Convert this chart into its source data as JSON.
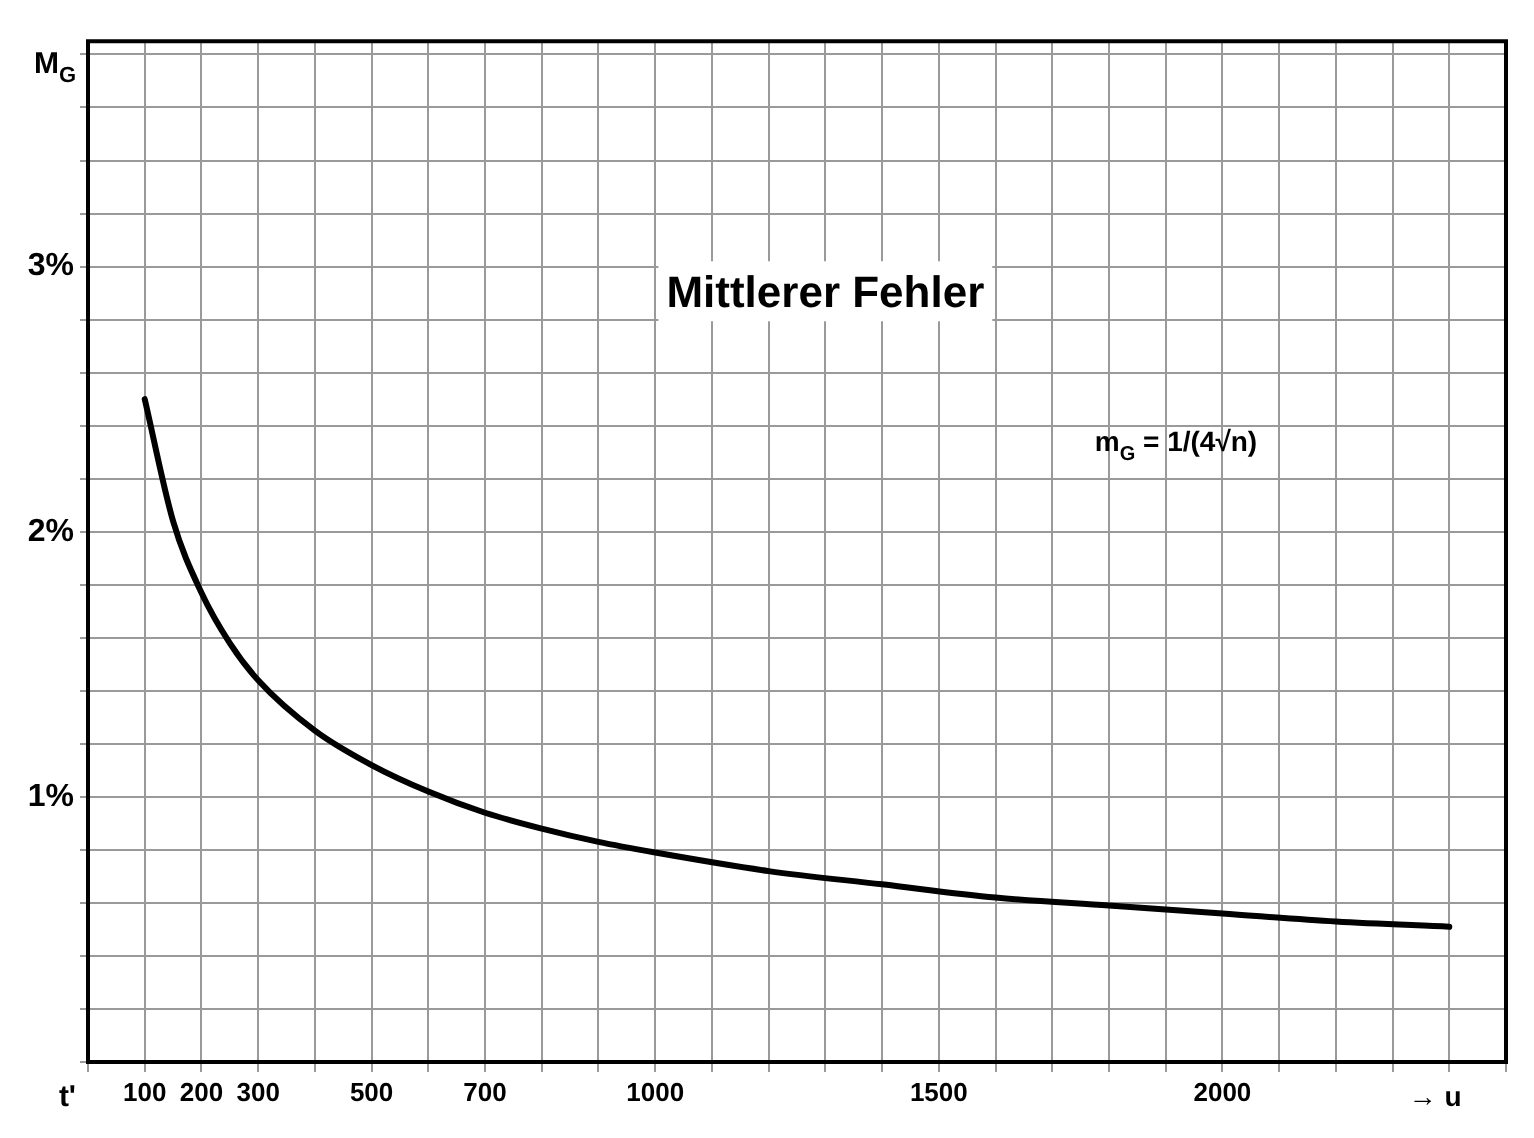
{
  "chart_data": {
    "type": "line",
    "title": "Mittlerer Fehler",
    "ylabel": "M$_{G}$",
    "xlabel": "→ u",
    "annotations": [
      "m$_{G}$ = 1/(4√n)",
      "t'"
    ],
    "x": [
      100,
      150,
      200,
      250,
      300,
      400,
      500,
      600,
      700,
      800,
      900,
      1000,
      1200,
      1400,
      1600,
      1800,
      2000,
      2200,
      2400
    ],
    "series": [
      {
        "color": "#000000",
        "values": [
          2.5,
          2.04,
          1.77,
          1.58,
          1.44,
          1.25,
          1.12,
          1.02,
          0.94,
          0.88,
          0.83,
          0.79,
          0.72,
          0.67,
          0.62,
          0.59,
          0.56,
          0.53,
          0.51
        ]
      }
    ],
    "xlim": [
      0,
      2500
    ],
    "xticks": [
      {
        "value": 0,
        "label": null
      },
      100,
      200,
      300,
      {
        "value": 400,
        "label": null
      },
      500,
      {
        "value": 600,
        "label": null
      },
      700,
      {
        "value": 800,
        "label": null
      },
      {
        "value": 900,
        "label": null
      },
      1000,
      {
        "value": 1100,
        "label": null
      },
      {
        "value": 1200,
        "label": null
      },
      {
        "value": 1300,
        "label": null
      },
      {
        "value": 1400,
        "label": null
      },
      1500,
      {
        "value": 1600,
        "label": null
      },
      {
        "value": 1700,
        "label": null
      },
      {
        "value": 1800,
        "label": null
      },
      {
        "value": 1900,
        "label": null
      },
      2000,
      {
        "value": 2100,
        "label": null
      },
      {
        "value": 2200,
        "label": null
      },
      {
        "value": 2300,
        "label": null
      },
      {
        "value": 2400,
        "label": null
      },
      {
        "value": 2500,
        "label": null
      }
    ],
    "ylim": [
      0,
      3.85
    ],
    "yticks": [
      {
        "value": 0,
        "label": null
      },
      {
        "value": 0.2,
        "label": null
      },
      {
        "value": 0.4,
        "label": null
      },
      {
        "value": 0.6,
        "label": null
      },
      {
        "value": 0.8,
        "label": null
      },
      {
        "value": 1,
        "label": "1%"
      },
      {
        "value": 1.2,
        "label": null
      },
      {
        "value": 1.4,
        "label": null
      },
      {
        "value": 1.6,
        "label": null
      },
      {
        "value": 1.8,
        "label": null
      },
      {
        "value": 2,
        "label": "2%"
      },
      {
        "value": 2.2,
        "label": null
      },
      {
        "value": 2.4,
        "label": null
      },
      {
        "value": 2.6,
        "label": null
      },
      {
        "value": 2.8,
        "label": null
      },
      {
        "value": 3,
        "label": "3%"
      },
      {
        "value": 3.2,
        "label": null
      },
      {
        "value": 3.4,
        "label": null
      },
      {
        "value": 3.6,
        "label": null
      },
      {
        "value": 3.8,
        "label": null
      }
    ],
    "grid": true,
    "legend": false,
    "marker": "none",
    "line_style": "solid"
  }
}
